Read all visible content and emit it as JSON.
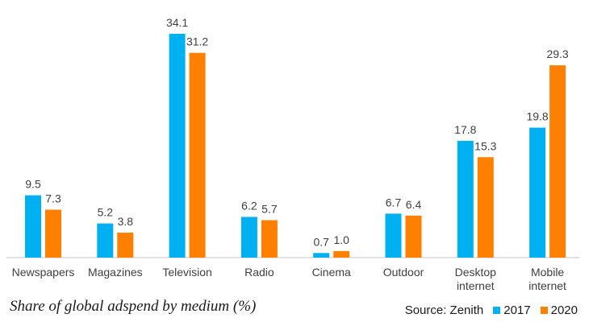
{
  "chart_data": {
    "type": "bar",
    "caption": "Share of global adspend by medium (%)",
    "source": "Source: Zenith",
    "categories": [
      [
        "Newspapers"
      ],
      [
        "Magazines"
      ],
      [
        "Television"
      ],
      [
        "Radio"
      ],
      [
        "Cinema"
      ],
      [
        "Outdoor"
      ],
      [
        "Desktop",
        "internet"
      ],
      [
        "Mobile",
        "internet"
      ]
    ],
    "series": [
      {
        "name": "2017",
        "color": "#00b0f0",
        "values": [
          9.5,
          5.2,
          34.1,
          6.2,
          0.7,
          6.7,
          17.8,
          19.8
        ],
        "labels": [
          "9.5",
          "5.2",
          "34.1",
          "6.2",
          "0.7",
          "6.7",
          "17.8",
          "19.8"
        ]
      },
      {
        "name": "2020",
        "color": "#ff8000",
        "values": [
          7.3,
          3.8,
          31.2,
          5.7,
          1.0,
          6.4,
          15.3,
          29.3
        ],
        "labels": [
          "7.3",
          "3.8",
          "31.2",
          "5.7",
          "1.0",
          "6.4",
          "15.3",
          "29.3"
        ]
      }
    ],
    "ylim": [
      0,
      34.1
    ],
    "grid": false,
    "legend": "bottom-right"
  }
}
